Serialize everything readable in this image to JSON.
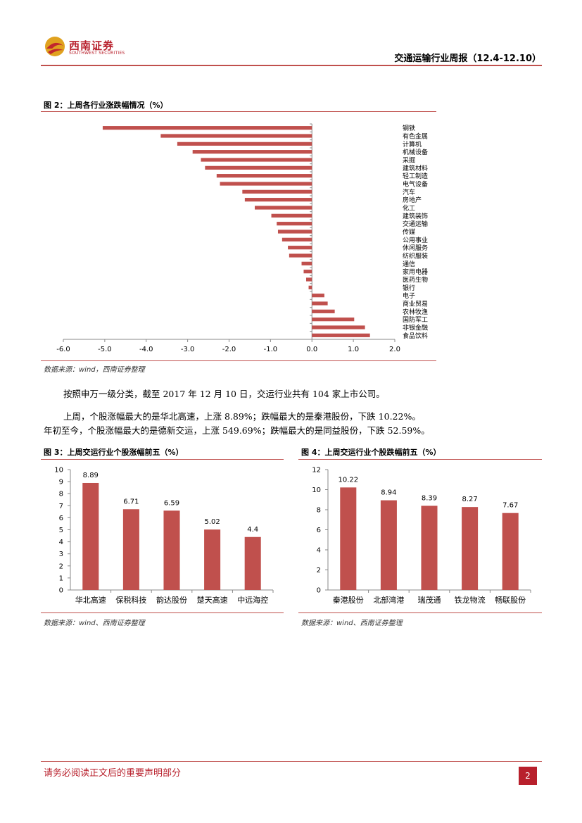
{
  "header": {
    "logo_cn": "西南证券",
    "logo_en": "SOUTHWEST SECURITIES",
    "report_title": "交通运输行业周报（12.4-12.10）"
  },
  "figure2": {
    "title": "图 2：上周各行业涨跌幅情况（%）",
    "source": "数据来源：wind，西南证券整理"
  },
  "figure3": {
    "title": "图 3：上周交运行业个股涨幅前五（%）",
    "source": "数据来源：wind、西南证券整理"
  },
  "figure4": {
    "title": "图 4：上周交运行业个股跌幅前五（%）",
    "source": "数据来源：wind、西南证券整理"
  },
  "body": {
    "p1": "按照申万一级分类，截至 2017 年 12 月 10 日，交运行业共有 104 家上市公司。",
    "p2_line1": "上周，个股涨幅最大的是华北高速，上涨 8.89%；跌幅最大的是秦港股份，下跌 10.22%。",
    "p2_line2": "年初至今，个股涨幅最大的是德新交运，上涨 549.69%；跌幅最大的是同益股份，下跌 52.59%。"
  },
  "footer": {
    "disclaimer": "请务必阅读正文后的重要声明部分",
    "page": "2"
  },
  "colors": {
    "bar": "#c0504d",
    "accent": "#b8202c"
  },
  "chart_data": [
    {
      "type": "bar",
      "orientation": "horizontal",
      "categories": [
        "钢铁",
        "有色金属",
        "计算机",
        "机械设备",
        "采掘",
        "建筑材料",
        "轻工制造",
        "电气设备",
        "汽车",
        "房地产",
        "化工",
        "建筑装饰",
        "交通运输",
        "传媒",
        "公用事业",
        "休闲服务",
        "纺织服装",
        "通信",
        "家用电器",
        "医药生物",
        "银行",
        "电子",
        "商业贸易",
        "农林牧渔",
        "国防军工",
        "非银金融",
        "食品饮料"
      ],
      "values": [
        -5.05,
        -3.65,
        -3.25,
        -2.88,
        -2.68,
        -2.58,
        -2.3,
        -2.22,
        -1.68,
        -1.62,
        -1.38,
        -0.98,
        -0.85,
        -0.82,
        -0.72,
        -0.58,
        -0.55,
        -0.25,
        -0.2,
        -0.14,
        -0.08,
        0.3,
        0.38,
        0.55,
        1.02,
        1.28,
        1.4
      ],
      "xlim": [
        -6.0,
        2.0
      ],
      "xticks": [
        "-6.0",
        "-5.0",
        "-4.0",
        "-3.0",
        "-2.0",
        "-1.0",
        "0.0",
        "1.0",
        "2.0"
      ],
      "xtick_values": [
        -6,
        -5,
        -4,
        -3,
        -2,
        -1,
        0,
        1,
        2
      ]
    },
    {
      "type": "bar",
      "categories": [
        "华北高速",
        "保税科技",
        "韵达股份",
        "楚天高速",
        "中远海控"
      ],
      "values": [
        8.89,
        6.71,
        6.59,
        5.02,
        4.4
      ],
      "labels": [
        "8.89",
        "6.71",
        "6.59",
        "5.02",
        "4.4"
      ],
      "ylim": [
        0,
        10
      ],
      "yticks": [
        "0",
        "1",
        "2",
        "3",
        "4",
        "5",
        "6",
        "7",
        "8",
        "9",
        "10"
      ],
      "ytick_values": [
        0,
        1,
        2,
        3,
        4,
        5,
        6,
        7,
        8,
        9,
        10
      ]
    },
    {
      "type": "bar",
      "categories": [
        "秦港股份",
        "北部湾港",
        "瑞茂通",
        "铁龙物流",
        "畅联股份"
      ],
      "values": [
        10.22,
        8.94,
        8.39,
        8.27,
        7.67
      ],
      "labels": [
        "10.22",
        "8.94",
        "8.39",
        "8.27",
        "7.67"
      ],
      "ylim": [
        0,
        12
      ],
      "yticks": [
        "0",
        "2",
        "4",
        "6",
        "8",
        "10",
        "12"
      ],
      "ytick_values": [
        0,
        2,
        4,
        6,
        8,
        10,
        12
      ]
    }
  ]
}
